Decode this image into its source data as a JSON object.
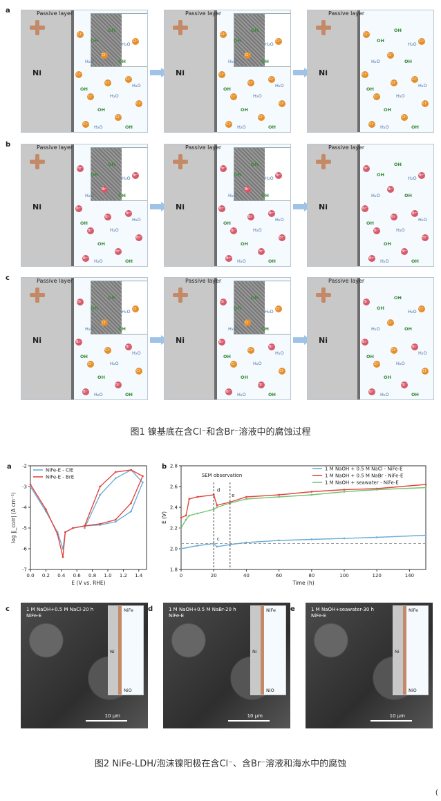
{
  "fig1": {
    "row_labels": [
      "a",
      "b",
      "c"
    ],
    "passive_layer": "Passive layer",
    "metal": "Ni",
    "ion_cl": "Cl⁻",
    "ion_br": "Br⁻",
    "oh": "OH",
    "h2o": "H₂O",
    "caption": "图1 镍基底在含Cl⁻和含Br⁻溶液中的腐蚀过程"
  },
  "fig2": {
    "panel_a": {
      "letter": "a",
      "legend": [
        "NiFe-E - ClE",
        "NiFe-E - BrE"
      ]
    },
    "panel_b": {
      "letter": "b",
      "annotation": "SEM observation",
      "markers": [
        "c",
        "d",
        "e"
      ],
      "legend": [
        "1 M NaOH + 0.5 M NaCl - NiFe-E",
        "1 M NaOH + 0.5 M NaBr - NiFe-E",
        "1 M NaOH + seawater - NiFe-E"
      ]
    },
    "sem_c": {
      "letter": "c",
      "line1": "1 M NaOH+0.5 M NaCl-20 h",
      "line2": "NiFe-E",
      "scale": "10 μm",
      "top": "NiFe",
      "mid": "Ni",
      "bot": "NiO"
    },
    "sem_d": {
      "letter": "d",
      "line1": "1 M NaOH+0.5 M NaBr-20 h",
      "line2": "NiFe-E",
      "scale": "10 μm",
      "top": "NiFe",
      "mid": "Ni",
      "bot": "NiO"
    },
    "sem_e": {
      "letter": "e",
      "line1": "1 M NaOH+seawater-30 h",
      "line2": "NiFe-E",
      "scale": "10 μm",
      "top": "NiFe",
      "mid": "Ni",
      "bot": "NiO"
    },
    "caption": "图2 NiFe-LDH/泡沫镍阳极在含Cl⁻、含Br⁻溶液和海水中的腐蚀"
  },
  "footer": "(",
  "colors": {
    "blue": "#6baed6",
    "red": "#e4463b",
    "green": "#74c476",
    "cl": "#e58f2a",
    "br": "#d65a6a"
  },
  "chart_data": [
    {
      "type": "line",
      "xlabel": "E (V vs. RHE)",
      "ylabel": "log |j_corr| (A cm⁻²)",
      "xlim": [
        0.0,
        1.5
      ],
      "ylim": [
        -7,
        -2
      ],
      "xticks": [
        "0.0",
        "0.2",
        "0.4",
        "0.6",
        "0.8",
        "1.0",
        "1.2",
        "1.4"
      ],
      "yticks": [
        "-7",
        "-6",
        "-5",
        "-4",
        "-3",
        "-2"
      ],
      "series": [
        {
          "name": "NiFe-E - ClE",
          "color": "#6baed6",
          "x": [
            0.0,
            0.2,
            0.35,
            0.42,
            0.45,
            0.55,
            0.7,
            0.9,
            1.1,
            1.3,
            1.45,
            1.3,
            1.1,
            0.9,
            0.7
          ],
          "y": [
            -3.0,
            -4.2,
            -5.2,
            -6.0,
            -5.2,
            -5.0,
            -4.9,
            -4.85,
            -4.7,
            -4.2,
            -2.8,
            -2.2,
            -2.6,
            -3.4,
            -5.0
          ]
        },
        {
          "name": "NiFe-E - BrE",
          "color": "#e4463b",
          "x": [
            0.0,
            0.2,
            0.35,
            0.42,
            0.45,
            0.55,
            0.7,
            0.9,
            1.1,
            1.3,
            1.45,
            1.3,
            1.1,
            0.9,
            0.7
          ],
          "y": [
            -2.9,
            -4.1,
            -5.3,
            -6.4,
            -5.2,
            -5.0,
            -4.9,
            -4.8,
            -4.6,
            -3.8,
            -2.5,
            -2.2,
            -2.3,
            -3.0,
            -4.9
          ]
        }
      ]
    },
    {
      "type": "line",
      "xlabel": "Time (h)",
      "ylabel": "E (V)",
      "xlim": [
        0,
        150
      ],
      "ylim": [
        1.8,
        2.8
      ],
      "xticks": [
        "0",
        "20",
        "40",
        "60",
        "80",
        "100",
        "120",
        "140"
      ],
      "yticks": [
        "1.8",
        "2.0",
        "2.2",
        "2.4",
        "2.6",
        "2.8"
      ],
      "series": [
        {
          "name": "1 M NaOH + 0.5 M NaCl - NiFe-E",
          "color": "#6baed6",
          "x": [
            0,
            10,
            20,
            22,
            30,
            40,
            60,
            80,
            100,
            120,
            150
          ],
          "y": [
            2.0,
            2.03,
            2.05,
            2.02,
            2.04,
            2.06,
            2.08,
            2.09,
            2.1,
            2.11,
            2.13
          ]
        },
        {
          "name": "1 M NaOH + 0.5 M NaBr - NiFe-E",
          "color": "#e4463b",
          "x": [
            0,
            3,
            5,
            10,
            20,
            22,
            30,
            40,
            60,
            80,
            100,
            120,
            150
          ],
          "y": [
            2.3,
            2.32,
            2.48,
            2.5,
            2.52,
            2.42,
            2.45,
            2.5,
            2.52,
            2.55,
            2.57,
            2.58,
            2.62
          ]
        },
        {
          "name": "1 M NaOH + seawater - NiFe-E",
          "color": "#74c476",
          "x": [
            0,
            3,
            5,
            10,
            20,
            22,
            30,
            40,
            60,
            80,
            100,
            120,
            150
          ],
          "y": [
            2.2,
            2.28,
            2.32,
            2.34,
            2.38,
            2.4,
            2.44,
            2.48,
            2.5,
            2.52,
            2.55,
            2.57,
            2.59
          ]
        }
      ]
    }
  ]
}
